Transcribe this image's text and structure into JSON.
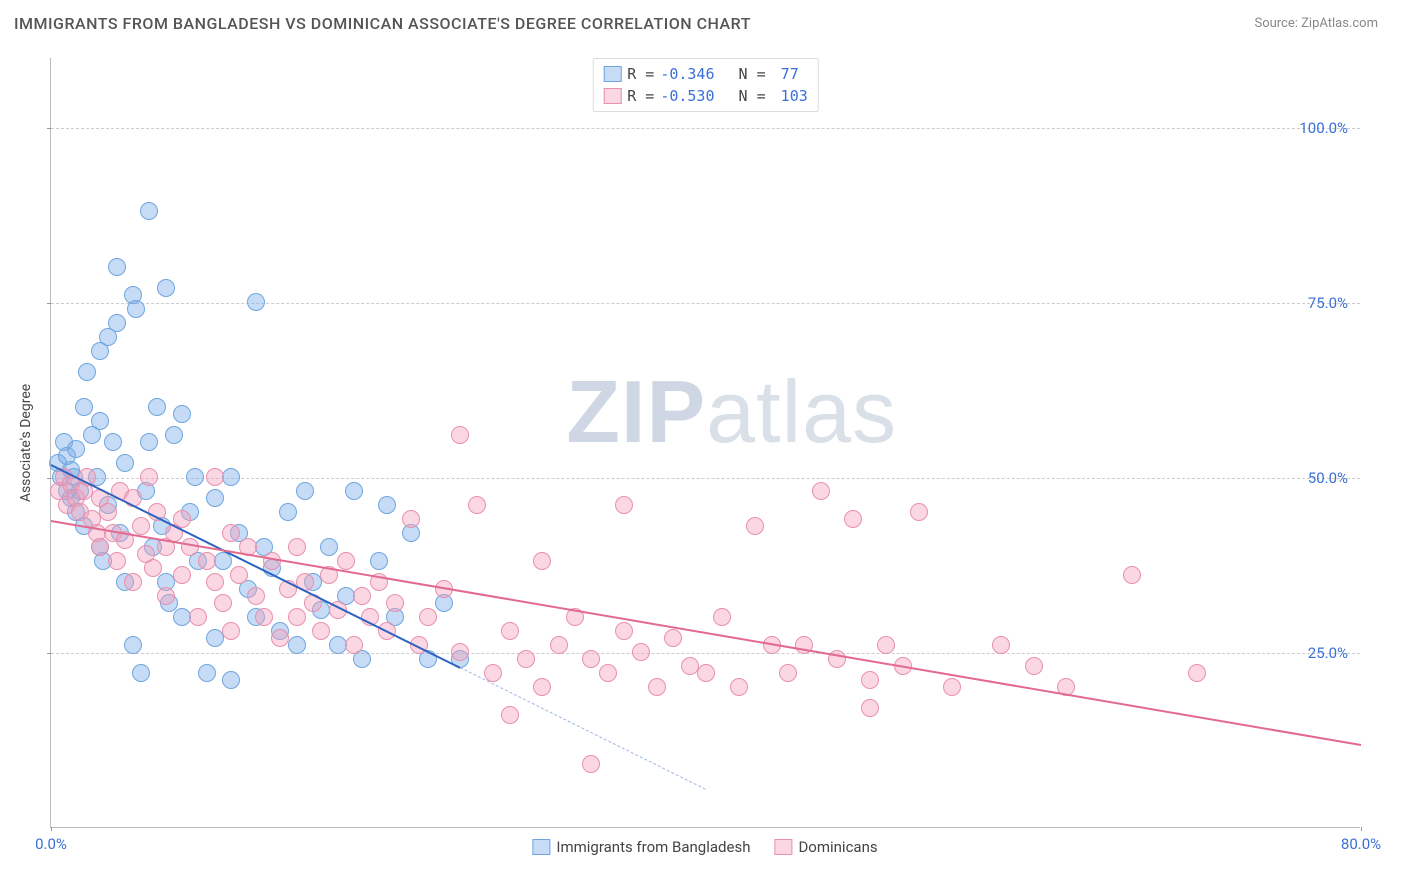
{
  "header": {
    "title": "IMMIGRANTS FROM BANGLADESH VS DOMINICAN ASSOCIATE'S DEGREE CORRELATION CHART",
    "source_prefix": "Source: ",
    "source": "ZipAtlas.com"
  },
  "chart": {
    "type": "scatter",
    "ylabel": "Associate's Degree",
    "xlim": [
      0,
      80
    ],
    "ylim": [
      0,
      110
    ],
    "xticks": [
      {
        "v": 0,
        "label": "0.0%"
      },
      {
        "v": 80,
        "label": "80.0%"
      }
    ],
    "yticks": [
      {
        "v": 25,
        "label": "25.0%"
      },
      {
        "v": 50,
        "label": "50.0%"
      },
      {
        "v": 75,
        "label": "75.0%"
      },
      {
        "v": 100,
        "label": "100.0%"
      }
    ],
    "grid_color": "#cccccc",
    "axis_color": "#bbbbbb",
    "background_color": "#ffffff",
    "label_fontsize": 14,
    "tick_fontsize": 15,
    "tick_color": "#3a6fd8",
    "marker_radius": 9,
    "marker_stroke_width": 1.2,
    "watermark": {
      "bold": "ZIP",
      "rest": "atlas"
    },
    "series": [
      {
        "key": "bangladesh",
        "label": "Immigrants from Bangladesh",
        "fill": "rgba(120,170,230,0.42)",
        "stroke": "#6fa6df",
        "line_color": "#2e63c0",
        "line_width": 2.5,
        "dash_color": "#9cb8e0",
        "R": "-0.346",
        "N": "77",
        "trend": {
          "x1": 0,
          "y1": 52,
          "x2": 25,
          "y2": 23,
          "extend_to_x": 40
        },
        "points": [
          [
            0.4,
            52
          ],
          [
            0.6,
            50
          ],
          [
            0.8,
            55
          ],
          [
            1.0,
            48
          ],
          [
            1.0,
            53
          ],
          [
            1.2,
            47
          ],
          [
            1.2,
            51
          ],
          [
            1.4,
            50
          ],
          [
            1.5,
            54
          ],
          [
            1.5,
            45
          ],
          [
            1.8,
            48
          ],
          [
            2.0,
            60
          ],
          [
            2.0,
            43
          ],
          [
            2.2,
            65
          ],
          [
            2.5,
            56
          ],
          [
            2.8,
            50
          ],
          [
            3.0,
            68
          ],
          [
            3.0,
            58
          ],
          [
            3.0,
            40
          ],
          [
            3.2,
            38
          ],
          [
            3.5,
            70
          ],
          [
            3.5,
            46
          ],
          [
            3.8,
            55
          ],
          [
            4.0,
            72
          ],
          [
            4.0,
            80
          ],
          [
            4.2,
            42
          ],
          [
            4.5,
            35
          ],
          [
            4.5,
            52
          ],
          [
            5.0,
            26
          ],
          [
            5.0,
            76
          ],
          [
            5.2,
            74
          ],
          [
            5.5,
            22
          ],
          [
            5.8,
            48
          ],
          [
            6.0,
            88
          ],
          [
            6.0,
            55
          ],
          [
            6.2,
            40
          ],
          [
            6.5,
            60
          ],
          [
            6.8,
            43
          ],
          [
            7.0,
            77
          ],
          [
            7.0,
            35
          ],
          [
            7.2,
            32
          ],
          [
            7.5,
            56
          ],
          [
            8.0,
            59
          ],
          [
            8.0,
            30
          ],
          [
            8.5,
            45
          ],
          [
            8.8,
            50
          ],
          [
            9.0,
            38
          ],
          [
            9.5,
            22
          ],
          [
            10.0,
            27
          ],
          [
            10.0,
            47
          ],
          [
            10.5,
            38
          ],
          [
            11.0,
            50
          ],
          [
            11.0,
            21
          ],
          [
            11.5,
            42
          ],
          [
            12.0,
            34
          ],
          [
            12.5,
            75
          ],
          [
            12.5,
            30
          ],
          [
            13.0,
            40
          ],
          [
            13.5,
            37
          ],
          [
            14.0,
            28
          ],
          [
            14.5,
            45
          ],
          [
            15.0,
            26
          ],
          [
            15.5,
            48
          ],
          [
            16.0,
            35
          ],
          [
            16.5,
            31
          ],
          [
            17.0,
            40
          ],
          [
            17.5,
            26
          ],
          [
            18.0,
            33
          ],
          [
            18.5,
            48
          ],
          [
            19.0,
            24
          ],
          [
            20.0,
            38
          ],
          [
            20.5,
            46
          ],
          [
            21.0,
            30
          ],
          [
            22.0,
            42
          ],
          [
            23.0,
            24
          ],
          [
            24.0,
            32
          ],
          [
            25.0,
            24
          ]
        ]
      },
      {
        "key": "dominicans",
        "label": "Dominicans",
        "fill": "rgba(242,160,185,0.42)",
        "stroke": "#e990ae",
        "line_color": "#e26a8f",
        "line_width": 2.5,
        "R": "-0.530",
        "N": "103",
        "trend": {
          "x1": 0,
          "y1": 44,
          "x2": 80,
          "y2": 12
        },
        "points": [
          [
            0.5,
            48
          ],
          [
            0.8,
            50
          ],
          [
            1.0,
            46
          ],
          [
            1.2,
            49
          ],
          [
            1.5,
            47
          ],
          [
            1.8,
            45
          ],
          [
            2.0,
            48
          ],
          [
            2.2,
            50
          ],
          [
            2.5,
            44
          ],
          [
            2.8,
            42
          ],
          [
            3.0,
            47
          ],
          [
            3.0,
            40
          ],
          [
            3.5,
            45
          ],
          [
            3.8,
            42
          ],
          [
            4.0,
            38
          ],
          [
            4.2,
            48
          ],
          [
            4.5,
            41
          ],
          [
            5.0,
            47
          ],
          [
            5.0,
            35
          ],
          [
            5.5,
            43
          ],
          [
            5.8,
            39
          ],
          [
            6.0,
            50
          ],
          [
            6.2,
            37
          ],
          [
            6.5,
            45
          ],
          [
            7.0,
            40
          ],
          [
            7.0,
            33
          ],
          [
            7.5,
            42
          ],
          [
            8.0,
            36
          ],
          [
            8.0,
            44
          ],
          [
            8.5,
            40
          ],
          [
            9.0,
            30
          ],
          [
            9.5,
            38
          ],
          [
            10.0,
            50
          ],
          [
            10.0,
            35
          ],
          [
            10.5,
            32
          ],
          [
            11.0,
            42
          ],
          [
            11.0,
            28
          ],
          [
            11.5,
            36
          ],
          [
            12.0,
            40
          ],
          [
            12.5,
            33
          ],
          [
            13.0,
            30
          ],
          [
            13.5,
            38
          ],
          [
            14.0,
            27
          ],
          [
            14.5,
            34
          ],
          [
            15.0,
            40
          ],
          [
            15.0,
            30
          ],
          [
            15.5,
            35
          ],
          [
            16.0,
            32
          ],
          [
            16.5,
            28
          ],
          [
            17.0,
            36
          ],
          [
            17.5,
            31
          ],
          [
            18.0,
            38
          ],
          [
            18.5,
            26
          ],
          [
            19.0,
            33
          ],
          [
            19.5,
            30
          ],
          [
            20.0,
            35
          ],
          [
            20.5,
            28
          ],
          [
            21.0,
            32
          ],
          [
            22.0,
            44
          ],
          [
            22.5,
            26
          ],
          [
            23.0,
            30
          ],
          [
            24.0,
            34
          ],
          [
            25.0,
            56
          ],
          [
            25.0,
            25
          ],
          [
            26.0,
            46
          ],
          [
            27.0,
            22
          ],
          [
            28.0,
            28
          ],
          [
            28.0,
            16
          ],
          [
            29.0,
            24
          ],
          [
            30.0,
            38
          ],
          [
            30.0,
            20
          ],
          [
            31.0,
            26
          ],
          [
            32.0,
            30
          ],
          [
            33.0,
            24
          ],
          [
            33.0,
            9
          ],
          [
            34.0,
            22
          ],
          [
            35.0,
            28
          ],
          [
            35.0,
            46
          ],
          [
            36.0,
            25
          ],
          [
            37.0,
            20
          ],
          [
            38.0,
            27
          ],
          [
            39.0,
            23
          ],
          [
            40.0,
            22
          ],
          [
            41.0,
            30
          ],
          [
            42.0,
            20
          ],
          [
            43.0,
            43
          ],
          [
            44.0,
            26
          ],
          [
            45.0,
            22
          ],
          [
            46.0,
            26
          ],
          [
            47.0,
            48
          ],
          [
            48.0,
            24
          ],
          [
            49.0,
            44
          ],
          [
            50.0,
            17
          ],
          [
            50.0,
            21
          ],
          [
            51.0,
            26
          ],
          [
            52.0,
            23
          ],
          [
            53.0,
            45
          ],
          [
            55.0,
            20
          ],
          [
            58.0,
            26
          ],
          [
            60.0,
            23
          ],
          [
            62.0,
            20
          ],
          [
            66.0,
            36
          ],
          [
            70.0,
            22
          ]
        ]
      }
    ]
  }
}
